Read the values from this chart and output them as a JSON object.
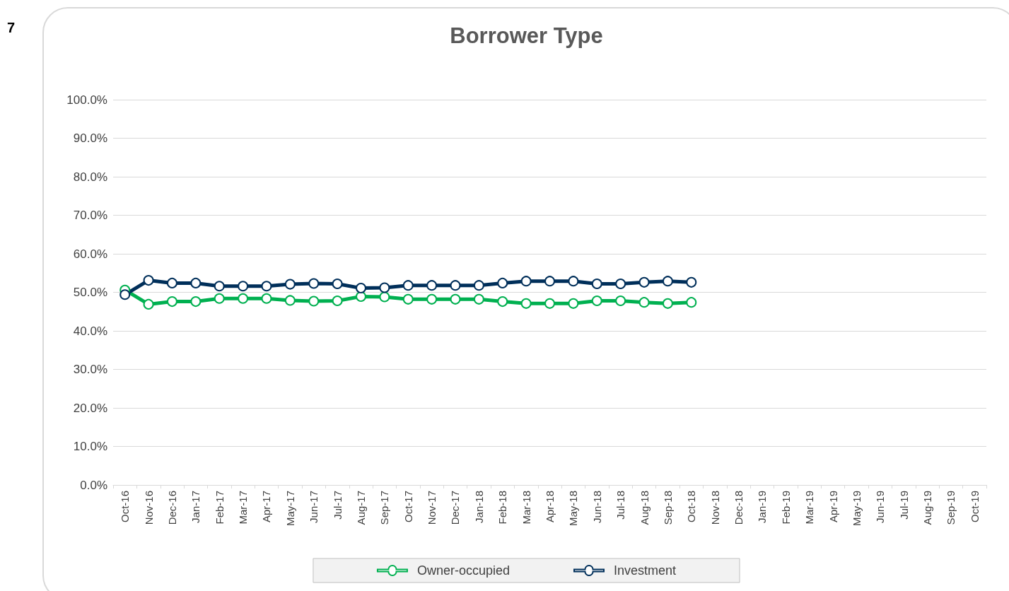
{
  "chart_data": {
    "type": "line",
    "title": "Borrower Type",
    "annotations": [
      "7"
    ],
    "categories": [
      "Oct-16",
      "Nov-16",
      "Dec-16",
      "Jan-17",
      "Feb-17",
      "Mar-17",
      "Apr-17",
      "May-17",
      "Jun-17",
      "Jul-17",
      "Aug-17",
      "Sep-17",
      "Oct-17",
      "Nov-17",
      "Dec-17",
      "Jan-18",
      "Feb-18",
      "Mar-18",
      "Apr-18",
      "May-18",
      "Jun-18",
      "Jul-18",
      "Aug-18",
      "Sep-18",
      "Oct-18",
      "Nov-18",
      "Dec-18",
      "Jan-19",
      "Feb-19",
      "Mar-19",
      "Apr-19",
      "May-19",
      "Jun-19",
      "Jul-19",
      "Aug-19",
      "Sep-19",
      "Oct-19"
    ],
    "series": [
      {
        "name": "Owner-occupied",
        "color": "#00b050",
        "values": [
          50.6,
          46.9,
          47.6,
          47.6,
          48.4,
          48.4,
          48.4,
          47.9,
          47.7,
          47.8,
          48.9,
          48.8,
          48.2,
          48.2,
          48.2,
          48.2,
          47.6,
          47.1,
          47.1,
          47.1,
          47.8,
          47.8,
          47.4,
          47.1,
          47.4,
          null,
          null,
          null,
          null,
          null,
          null,
          null,
          null,
          null,
          null,
          null,
          null
        ]
      },
      {
        "name": "Investment",
        "color": "#002f5a",
        "values": [
          49.4,
          53.1,
          52.4,
          52.4,
          51.6,
          51.6,
          51.6,
          52.1,
          52.3,
          52.2,
          51.1,
          51.2,
          51.8,
          51.8,
          51.8,
          51.8,
          52.4,
          52.9,
          52.9,
          52.9,
          52.2,
          52.2,
          52.6,
          52.9,
          52.6,
          null,
          null,
          null,
          null,
          null,
          null,
          null,
          null,
          null,
          null,
          null,
          null
        ]
      }
    ],
    "ylim": [
      0,
      100
    ],
    "yticks": [
      {
        "value": 0,
        "label": "0.0%"
      },
      {
        "value": 10,
        "label": "10.0%"
      },
      {
        "value": 20,
        "label": "20.0%"
      },
      {
        "value": 30,
        "label": "30.0%"
      },
      {
        "value": 40,
        "label": "40.0%"
      },
      {
        "value": 50,
        "label": "50.0%"
      },
      {
        "value": 60,
        "label": "60.0%"
      },
      {
        "value": 70,
        "label": "70.0%"
      },
      {
        "value": 80,
        "label": "80.0%"
      },
      {
        "value": 90,
        "label": "90.0%"
      },
      {
        "value": 100,
        "label": "100.0%"
      }
    ],
    "grid": "y",
    "legend": "bottom",
    "marker": "circle",
    "line_style": "solid"
  }
}
